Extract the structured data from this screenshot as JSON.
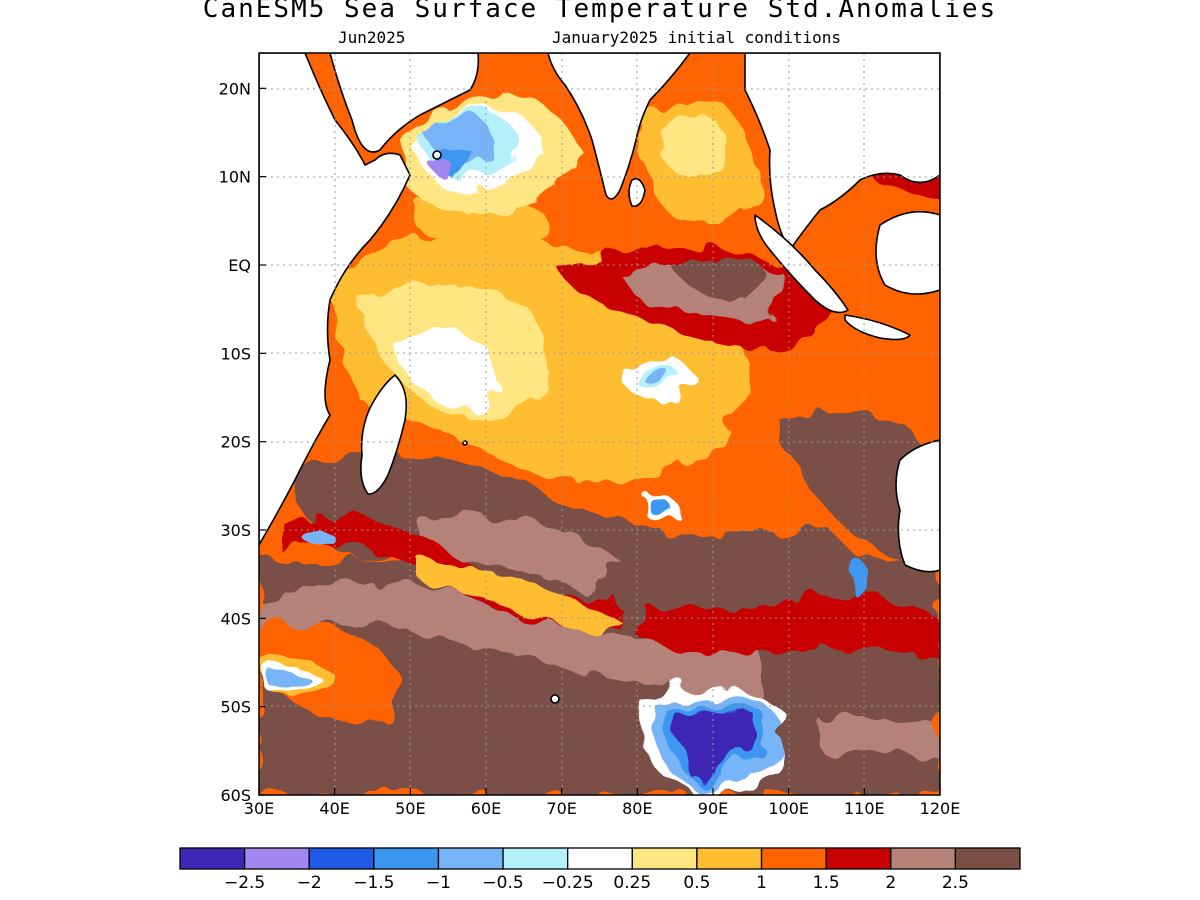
{
  "title": "CanESM5 Sea Surface Temperature Std.Anomalies",
  "subtitle_left": "Jun2025",
  "subtitle_right": "January2025 initial conditions",
  "map": {
    "region": "Indian Ocean",
    "lon_range": [
      30,
      120
    ],
    "lat_range": [
      -60,
      24
    ],
    "lon_ticks": [
      "30E",
      "40E",
      "50E",
      "60E",
      "70E",
      "80E",
      "90E",
      "100E",
      "110E",
      "120E"
    ],
    "lat_ticks": [
      "20N",
      "10N",
      "EQ",
      "10S",
      "20S",
      "30S",
      "40S",
      "50S",
      "60S"
    ],
    "gridlines": true,
    "land_color": "#ffffff"
  },
  "legend": {
    "colors": [
      "#3c28b4",
      "#a088f0",
      "#1e5ae6",
      "#3c96f0",
      "#78b4f8",
      "#b4f0fa",
      "#ffffff",
      "#ffe682",
      "#ffbe32",
      "#ff6400",
      "#c80000",
      "#b48278",
      "#7a5046"
    ],
    "labels": [
      "-2.5",
      "-2",
      "-1.5",
      "-1",
      "-0.5",
      "-0.25",
      "0.25",
      "0.5",
      "1",
      "1.5",
      "2",
      "2.5"
    ]
  }
}
